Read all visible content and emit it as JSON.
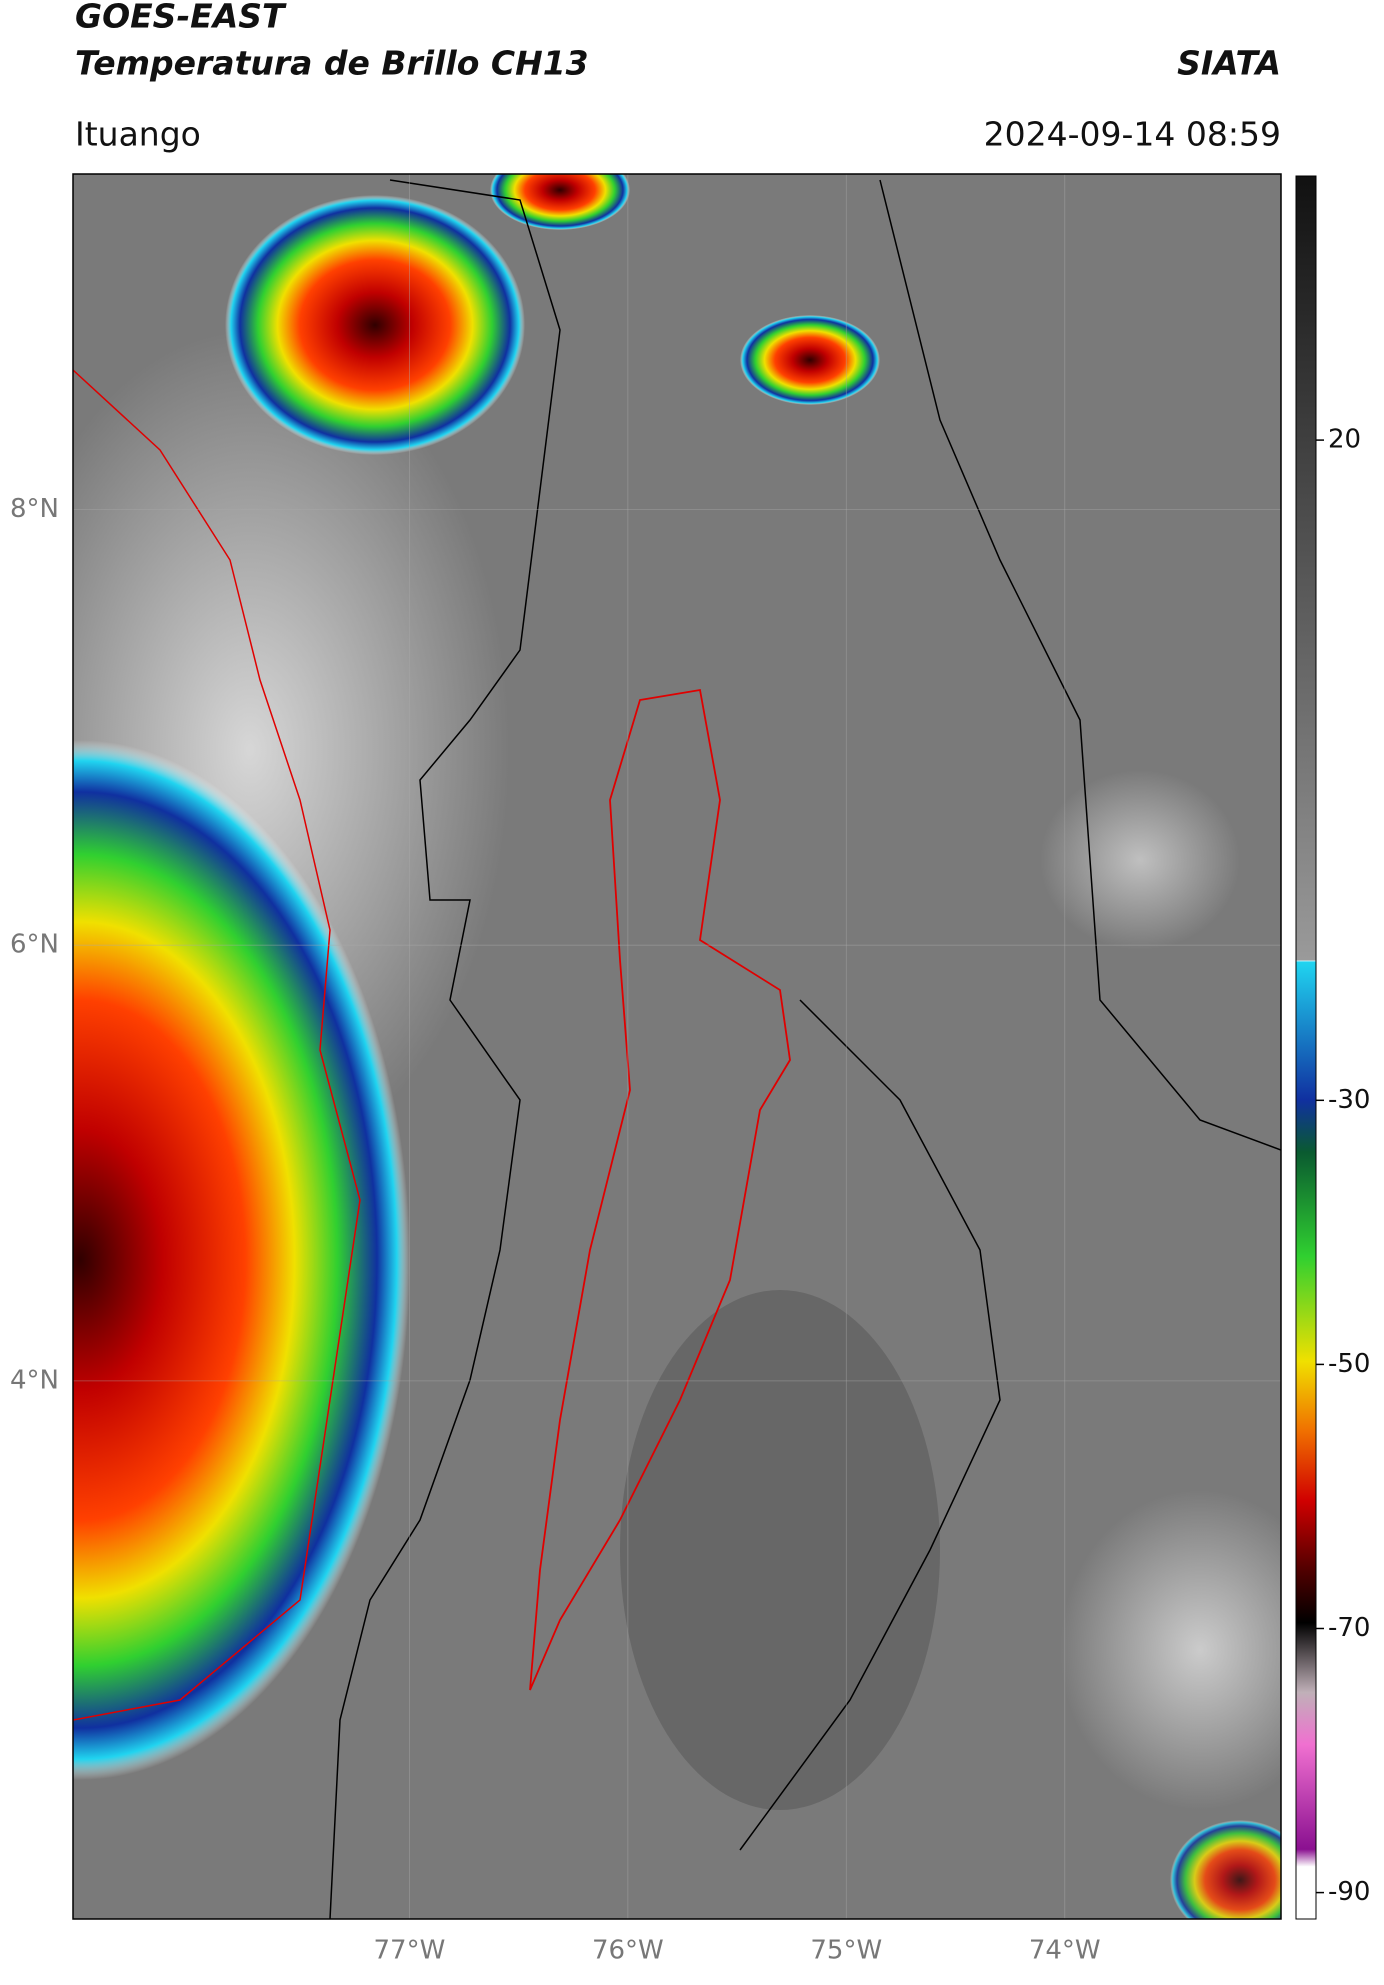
{
  "header": {
    "title": "GOES-EAST",
    "subtitle": "Temperatura de Brillo CH13",
    "source": "SIATA",
    "region": "Ituango",
    "timestamp": "2024-09-14 08:59"
  },
  "map": {
    "xlim": [
      -78.54,
      -73.01
    ],
    "ylim": [
      1.53,
      9.54
    ],
    "xticks": [
      {
        "value": -77,
        "label": "77°W"
      },
      {
        "value": -76,
        "label": "76°W"
      },
      {
        "value": -75,
        "label": "75°W"
      },
      {
        "value": -74,
        "label": "74°W"
      }
    ],
    "yticks": [
      {
        "value": 8,
        "label": "8°N"
      },
      {
        "value": 6,
        "label": "6°N"
      },
      {
        "value": 4,
        "label": "4°N"
      }
    ]
  },
  "colorbar": {
    "lim": [
      -92,
      40
    ],
    "ticks": [
      20,
      -30,
      -50,
      -70,
      -90
    ]
  }
}
